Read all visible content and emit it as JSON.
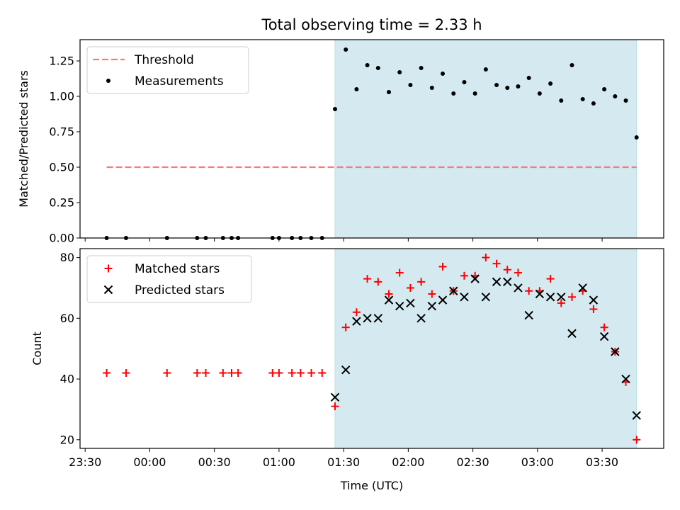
{
  "chart_data": {
    "type": "scatter",
    "title": "Total observing time = 2.33 h",
    "xlabel": "Time (UTC)",
    "x_ticks": [
      "23:30",
      "00:00",
      "00:30",
      "01:00",
      "01:30",
      "02:00",
      "02:30",
      "03:00",
      "03:30"
    ],
    "observing_window": {
      "start": "01:26",
      "end": "03:46",
      "color": "#d4eaf0"
    },
    "panels": [
      {
        "ylabel": "Matched/Predicted stars",
        "ylim": [
          0,
          1.4
        ],
        "yticks": [
          "0.00",
          "0.25",
          "0.50",
          "0.75",
          "1.00",
          "1.25"
        ],
        "legend": [
          "Threshold",
          "Measurements"
        ],
        "threshold": {
          "name": "Threshold",
          "value": 0.5,
          "x_range": [
            "23:40",
            "03:46"
          ],
          "color": "#f08080"
        },
        "measurements": {
          "name": "Measurements",
          "color": "#000000",
          "x": [
            "23:40",
            "23:49",
            "00:08",
            "00:22",
            "00:26",
            "00:34",
            "00:38",
            "00:41",
            "00:57",
            "01:00",
            "01:06",
            "01:10",
            "01:15",
            "01:20",
            "01:26",
            "01:31",
            "01:36",
            "01:41",
            "01:46",
            "01:51",
            "01:56",
            "02:01",
            "02:06",
            "02:11",
            "02:16",
            "02:21",
            "02:26",
            "02:31",
            "02:36",
            "02:41",
            "02:46",
            "02:51",
            "02:56",
            "03:01",
            "03:06",
            "03:11",
            "03:16",
            "03:21",
            "03:26",
            "03:31",
            "03:36",
            "03:41",
            "03:46"
          ],
          "y": [
            0,
            0,
            0,
            0,
            0,
            0,
            0,
            0,
            0,
            0,
            0,
            0,
            0,
            0,
            0.91,
            1.33,
            1.05,
            1.22,
            1.2,
            1.03,
            1.17,
            1.08,
            1.2,
            1.06,
            1.16,
            1.02,
            1.1,
            1.02,
            1.19,
            1.08,
            1.06,
            1.07,
            1.13,
            1.02,
            1.09,
            0.97,
            1.22,
            0.98,
            0.95,
            1.05,
            1.0,
            0.97,
            0.71
          ]
        }
      },
      {
        "ylabel": "Count",
        "ylim": [
          17,
          82
        ],
        "yticks": [
          "20",
          "40",
          "60",
          "80"
        ],
        "legend": [
          "Matched stars",
          "Predicted stars"
        ],
        "series": [
          {
            "name": "Matched stars",
            "marker": "+",
            "color": "#ff0000",
            "x": [
              "23:40",
              "23:49",
              "00:08",
              "00:22",
              "00:26",
              "00:34",
              "00:38",
              "00:41",
              "00:57",
              "01:00",
              "01:06",
              "01:10",
              "01:15",
              "01:20",
              "01:26",
              "01:31",
              "01:36",
              "01:41",
              "01:46",
              "01:51",
              "01:56",
              "02:01",
              "02:06",
              "02:11",
              "02:16",
              "02:21",
              "02:26",
              "02:31",
              "02:36",
              "02:41",
              "02:46",
              "02:51",
              "02:56",
              "03:01",
              "03:06",
              "03:11",
              "03:16",
              "03:21",
              "03:26",
              "03:31",
              "03:36",
              "03:41",
              "03:46"
            ],
            "y": [
              42,
              42,
              42,
              42,
              42,
              42,
              42,
              42,
              42,
              42,
              42,
              42,
              42,
              42,
              31,
              57,
              62,
              73,
              72,
              68,
              75,
              70,
              72,
              68,
              77,
              69,
              74,
              74,
              80,
              78,
              76,
              75,
              69,
              69,
              73,
              65,
              67,
              69,
              63,
              57,
              49,
              39,
              20
            ]
          },
          {
            "name": "Predicted stars",
            "marker": "x",
            "color": "#000000",
            "x": [
              "01:26",
              "01:31",
              "01:36",
              "01:41",
              "01:46",
              "01:51",
              "01:56",
              "02:01",
              "02:06",
              "02:11",
              "02:16",
              "02:21",
              "02:26",
              "02:31",
              "02:36",
              "02:41",
              "02:46",
              "02:51",
              "02:56",
              "03:01",
              "03:06",
              "03:11",
              "03:16",
              "03:21",
              "03:26",
              "03:31",
              "03:36",
              "03:41",
              "03:46"
            ],
            "y": [
              34,
              43,
              59,
              60,
              60,
              66,
              64,
              65,
              60,
              64,
              66,
              69,
              67,
              73,
              67,
              72,
              72,
              70,
              61,
              68,
              67,
              67,
              55,
              70,
              66,
              54,
              49,
              40,
              28
            ]
          }
        ]
      }
    ]
  }
}
